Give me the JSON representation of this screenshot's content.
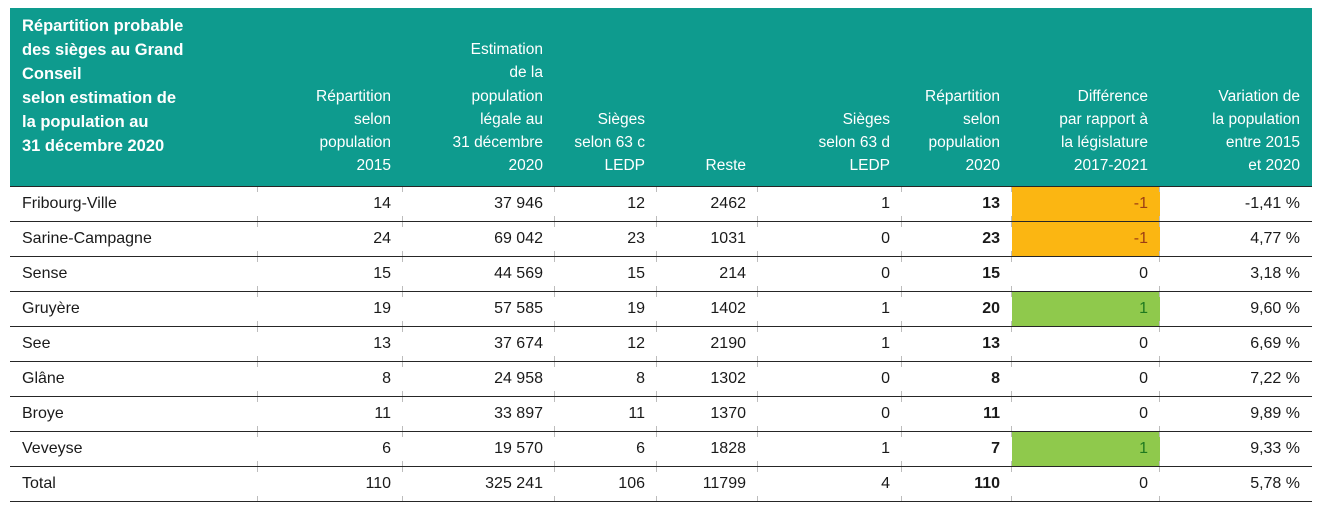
{
  "colors": {
    "header_bg": "#0e9b8e",
    "header_text": "#ffffff",
    "diff_negative_bg": "#fbb612",
    "diff_negative_text": "#9c3d14",
    "diff_positive_bg": "#8fc94c",
    "diff_positive_text": "#1f7a1f",
    "row_border": "#262626"
  },
  "table": {
    "title": "Répartition probable\ndes sièges au Grand\nConseil\nselon estimation de\nla population au\n31 décembre 2020",
    "columns": [
      "Répartition\nselon\npopulation\n2015",
      "Estimation\nde la\npopulation\nlégale au\n31 décembre\n2020",
      "Sièges\nselon 63 c\nLEDP",
      "Reste",
      "Sièges\nselon 63 d\nLEDP",
      "Répartition\nselon\npopulation\n2020",
      "Différence\npar rapport à\nla législature\n2017-2021",
      "Variation de\nla population\nentre 2015\net 2020"
    ],
    "rows": [
      {
        "name": "Fribourg-Ville",
        "rep2015": "14",
        "pop2020": "37 946",
        "sieges63c": "12",
        "reste": "2462",
        "sieges63d": "1",
        "rep2020": "13",
        "difference": "-1",
        "diff_style": "negative",
        "variation": "-1,41 %",
        "is_total": false
      },
      {
        "name": "Sarine-Campagne",
        "rep2015": "24",
        "pop2020": "69 042",
        "sieges63c": "23",
        "reste": "1031",
        "sieges63d": "0",
        "rep2020": "23",
        "difference": "-1",
        "diff_style": "negative",
        "variation": "4,77 %",
        "is_total": false
      },
      {
        "name": "Sense",
        "rep2015": "15",
        "pop2020": "44 569",
        "sieges63c": "15",
        "reste": "214",
        "sieges63d": "0",
        "rep2020": "15",
        "difference": "0",
        "diff_style": "neutral",
        "variation": "3,18 %",
        "is_total": false
      },
      {
        "name": "Gruyère",
        "rep2015": "19",
        "pop2020": "57 585",
        "sieges63c": "19",
        "reste": "1402",
        "sieges63d": "1",
        "rep2020": "20",
        "difference": "1",
        "diff_style": "positive",
        "variation": "9,60 %",
        "is_total": false
      },
      {
        "name": "See",
        "rep2015": "13",
        "pop2020": "37 674",
        "sieges63c": "12",
        "reste": "2190",
        "sieges63d": "1",
        "rep2020": "13",
        "difference": "0",
        "diff_style": "neutral",
        "variation": "6,69 %",
        "is_total": false
      },
      {
        "name": "Glâne",
        "rep2015": "8",
        "pop2020": "24 958",
        "sieges63c": "8",
        "reste": "1302",
        "sieges63d": "0",
        "rep2020": "8",
        "difference": "0",
        "diff_style": "neutral",
        "variation": "7,22 %",
        "is_total": false
      },
      {
        "name": "Broye",
        "rep2015": "11",
        "pop2020": "33 897",
        "sieges63c": "11",
        "reste": "1370",
        "sieges63d": "0",
        "rep2020": "11",
        "difference": "0",
        "diff_style": "neutral",
        "variation": "9,89 %",
        "is_total": false
      },
      {
        "name": "Veveyse",
        "rep2015": "6",
        "pop2020": "19 570",
        "sieges63c": "6",
        "reste": "1828",
        "sieges63d": "1",
        "rep2020": "7",
        "difference": "1",
        "diff_style": "positive",
        "variation": "9,33 %",
        "is_total": false
      },
      {
        "name": "Total",
        "rep2015": "110",
        "pop2020": "325 241",
        "sieges63c": "106",
        "reste": "11799",
        "sieges63d": "4",
        "rep2020": "110",
        "difference": "0",
        "diff_style": "neutral",
        "variation": "5,78 %",
        "is_total": true
      }
    ]
  }
}
